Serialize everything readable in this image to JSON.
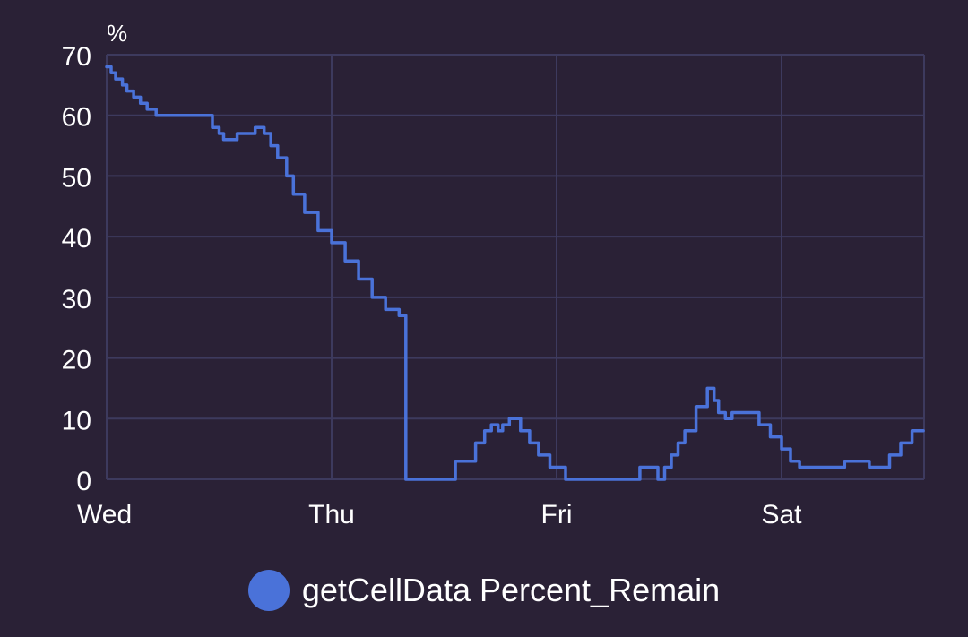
{
  "chart_data": {
    "type": "line",
    "step": true,
    "unit_label": "%",
    "x_categories": [
      "Wed",
      "Thu",
      "Fri",
      "Sat"
    ],
    "x_range_days": [
      0,
      3.63
    ],
    "ylim": [
      0,
      70
    ],
    "yticks": [
      0,
      10,
      20,
      30,
      40,
      50,
      60,
      70
    ],
    "grid": true,
    "legend_position": "bottom-center",
    "series": [
      {
        "name": "getCellData Percent_Remain",
        "color": "#4a72d9",
        "points": [
          [
            0.0,
            68
          ],
          [
            0.02,
            67
          ],
          [
            0.04,
            66
          ],
          [
            0.07,
            65
          ],
          [
            0.09,
            64
          ],
          [
            0.12,
            63
          ],
          [
            0.15,
            62
          ],
          [
            0.18,
            61
          ],
          [
            0.22,
            60
          ],
          [
            0.45,
            60
          ],
          [
            0.47,
            58
          ],
          [
            0.5,
            57
          ],
          [
            0.52,
            56
          ],
          [
            0.58,
            57
          ],
          [
            0.66,
            58
          ],
          [
            0.7,
            57
          ],
          [
            0.73,
            55
          ],
          [
            0.76,
            53
          ],
          [
            0.8,
            50
          ],
          [
            0.83,
            47
          ],
          [
            0.88,
            44
          ],
          [
            0.94,
            41
          ],
          [
            1.0,
            39
          ],
          [
            1.06,
            36
          ],
          [
            1.12,
            33
          ],
          [
            1.18,
            30
          ],
          [
            1.24,
            28
          ],
          [
            1.3,
            27
          ],
          [
            1.33,
            0
          ],
          [
            1.52,
            0
          ],
          [
            1.55,
            3
          ],
          [
            1.6,
            3
          ],
          [
            1.64,
            6
          ],
          [
            1.68,
            8
          ],
          [
            1.71,
            9
          ],
          [
            1.74,
            8
          ],
          [
            1.76,
            9
          ],
          [
            1.79,
            10
          ],
          [
            1.84,
            8
          ],
          [
            1.88,
            6
          ],
          [
            1.92,
            4
          ],
          [
            1.97,
            2
          ],
          [
            2.04,
            0
          ],
          [
            2.34,
            0
          ],
          [
            2.37,
            2
          ],
          [
            2.42,
            2
          ],
          [
            2.45,
            0
          ],
          [
            2.48,
            2
          ],
          [
            2.51,
            4
          ],
          [
            2.54,
            6
          ],
          [
            2.57,
            8
          ],
          [
            2.62,
            12
          ],
          [
            2.67,
            15
          ],
          [
            2.7,
            13
          ],
          [
            2.72,
            11
          ],
          [
            2.75,
            10
          ],
          [
            2.78,
            11
          ],
          [
            2.85,
            11
          ],
          [
            2.9,
            9
          ],
          [
            2.95,
            7
          ],
          [
            3.0,
            5
          ],
          [
            3.04,
            3
          ],
          [
            3.08,
            2
          ],
          [
            3.24,
            2
          ],
          [
            3.28,
            3
          ],
          [
            3.39,
            2
          ],
          [
            3.43,
            2
          ],
          [
            3.48,
            4
          ],
          [
            3.53,
            6
          ],
          [
            3.58,
            8
          ],
          [
            3.63,
            8
          ]
        ]
      }
    ]
  }
}
